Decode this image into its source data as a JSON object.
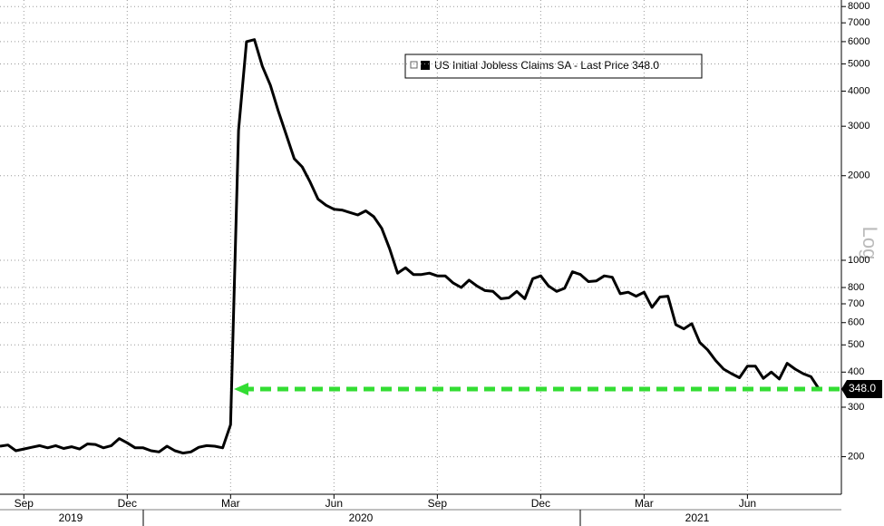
{
  "chart_data": {
    "type": "line",
    "log_y": true,
    "grid": true,
    "axis_note": "Log",
    "last_value_label": "348.0",
    "year_labels": [
      "2019",
      "2020",
      "2021"
    ],
    "categories": [
      null,
      null,
      null,
      "Sep",
      null,
      null,
      null,
      null,
      null,
      null,
      null,
      null,
      null,
      null,
      null,
      null,
      "Dec",
      null,
      null,
      null,
      null,
      null,
      null,
      null,
      null,
      null,
      null,
      null,
      null,
      "Mar",
      null,
      null,
      null,
      null,
      null,
      null,
      null,
      null,
      null,
      null,
      null,
      null,
      "Jun",
      null,
      null,
      null,
      null,
      null,
      null,
      null,
      null,
      null,
      null,
      null,
      null,
      "Sep",
      null,
      null,
      null,
      null,
      null,
      null,
      null,
      null,
      null,
      null,
      null,
      null,
      "Dec",
      null,
      null,
      null,
      null,
      null,
      null,
      null,
      null,
      null,
      null,
      null,
      null,
      "Mar",
      null,
      null,
      null,
      null,
      null,
      null,
      null,
      null,
      null,
      null,
      null,
      null,
      "Jun",
      null,
      null,
      null,
      null,
      null,
      null,
      null,
      null,
      null
    ],
    "series": [
      {
        "name": "US Initial Jobless Claims SA - Last Price 348.0",
        "color": "#000000",
        "values": [
          218,
          220,
          210,
          213,
          216,
          219,
          215,
          219,
          214,
          217,
          213,
          222,
          221,
          215,
          219,
          232,
          224,
          215,
          215,
          210,
          208,
          218,
          210,
          206,
          208,
          216,
          219,
          218,
          215,
          260,
          2900,
          6000,
          6100,
          4900,
          4200,
          3400,
          2800,
          2300,
          2150,
          1900,
          1650,
          1570,
          1520,
          1510,
          1480,
          1450,
          1500,
          1430,
          1300,
          1100,
          900,
          940,
          890,
          890,
          900,
          880,
          880,
          830,
          800,
          850,
          810,
          780,
          775,
          730,
          735,
          775,
          730,
          860,
          880,
          810,
          775,
          795,
          910,
          890,
          840,
          845,
          880,
          870,
          760,
          770,
          745,
          770,
          680,
          740,
          745,
          590,
          570,
          595,
          510,
          480,
          440,
          410,
          395,
          382,
          420,
          420,
          380,
          400,
          378,
          430,
          410,
          395,
          385,
          348
        ]
      }
    ],
    "ylim": [
      147,
      8440
    ],
    "yticks": [
      200,
      300,
      400,
      500,
      600,
      700,
      800,
      1000,
      2000,
      3000,
      4000,
      5000,
      6000,
      7000,
      8000
    ],
    "highlight_color": "#33dd33"
  }
}
